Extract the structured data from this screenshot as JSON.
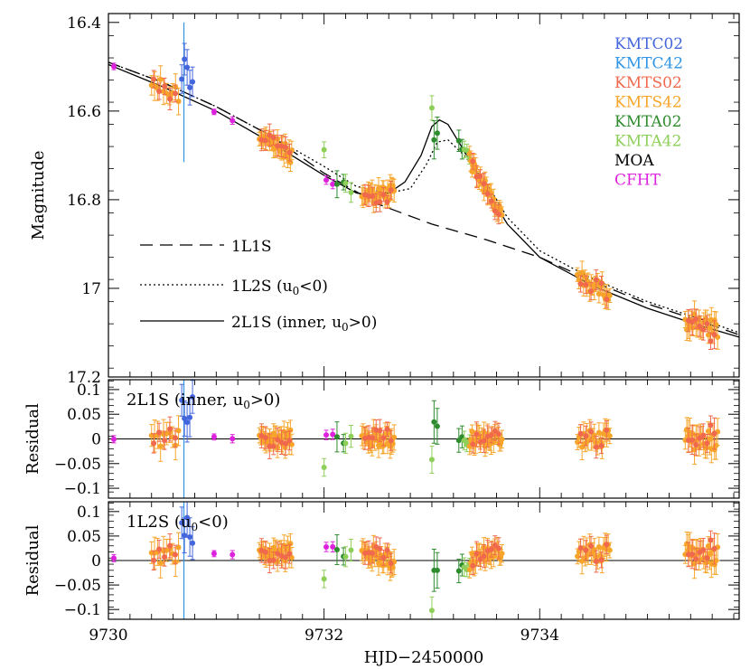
{
  "chart_data": {
    "type": "scatter",
    "xlabel": "HJD−2450000",
    "x_ticks": [
      "9730",
      "9732",
      "9734"
    ],
    "x_range": [
      9730.0,
      9735.85
    ],
    "panels": [
      {
        "ylabel": "Magnitude",
        "y_range": [
          16.38,
          17.2
        ],
        "y_inverted": true,
        "y_ticks": [
          "16.4",
          "16.6",
          "16.8",
          "17",
          "17.2"
        ],
        "y_tick_values": [
          16.4,
          16.6,
          16.8,
          17.0,
          17.2
        ]
      },
      {
        "ylabel": "Residual",
        "y_range": [
          -0.12,
          0.12
        ],
        "y_ticks": [
          "0.1",
          "0.05",
          "0",
          "−0.05",
          "−0.1"
        ],
        "y_tick_values": [
          0.1,
          0.05,
          0,
          -0.05,
          -0.1
        ],
        "label_prefix": "2L1S (inner, u",
        "label_sub": "0",
        "label_suffix": ">0)"
      },
      {
        "ylabel": "Residual",
        "y_range": [
          -0.12,
          0.12
        ],
        "y_ticks": [
          "0.1",
          "0.05",
          "0",
          "−0.05",
          "−0.1"
        ],
        "y_tick_values": [
          0.1,
          0.05,
          0,
          -0.05,
          -0.1
        ],
        "label_prefix": "1L2S (u",
        "label_sub": "0",
        "label_suffix": "<0)"
      }
    ],
    "legend_placement": "top-right",
    "series": [
      {
        "name": "KMTC02",
        "color": "#4466dd"
      },
      {
        "name": "KMTC42",
        "color": "#2f95e6"
      },
      {
        "name": "KMTS02",
        "color": "#f0694d"
      },
      {
        "name": "KMTS42",
        "color": "#f7a52a"
      },
      {
        "name": "KMTA02",
        "color": "#2e8b2e"
      },
      {
        "name": "KMTA42",
        "color": "#8ecf5a"
      },
      {
        "name": "MOA",
        "color": "#000000"
      },
      {
        "name": "CFHT",
        "color": "#dd22dd"
      }
    ],
    "models": [
      {
        "label_prefix": "1L1S",
        "label_sub": "",
        "label_suffix": "",
        "style": "dashed",
        "points": [
          [
            9730,
            16.49
          ],
          [
            9730.5,
            16.535
          ],
          [
            9731,
            16.59
          ],
          [
            9731.5,
            16.655
          ],
          [
            9732,
            16.74
          ],
          [
            9732.5,
            16.81
          ],
          [
            9733,
            16.855
          ],
          [
            9733.5,
            16.89
          ],
          [
            9734,
            16.93
          ],
          [
            9734.5,
            16.985
          ],
          [
            9735,
            17.035
          ],
          [
            9735.5,
            17.075
          ],
          [
            9735.85,
            17.105
          ]
        ]
      },
      {
        "label_prefix": "1L2S (u",
        "label_sub": "0",
        "label_suffix": "<0)",
        "style": "dotted",
        "points": [
          [
            9730,
            16.49
          ],
          [
            9730.5,
            16.535
          ],
          [
            9731,
            16.59
          ],
          [
            9731.5,
            16.655
          ],
          [
            9732,
            16.725
          ],
          [
            9732.3,
            16.77
          ],
          [
            9732.6,
            16.785
          ],
          [
            9732.8,
            16.775
          ],
          [
            9732.95,
            16.72
          ],
          [
            9733.05,
            16.67
          ],
          [
            9733.15,
            16.665
          ],
          [
            9733.3,
            16.7
          ],
          [
            9733.5,
            16.76
          ],
          [
            9733.7,
            16.84
          ],
          [
            9734,
            16.915
          ],
          [
            9734.5,
            16.98
          ],
          [
            9735,
            17.03
          ],
          [
            9735.5,
            17.07
          ],
          [
            9735.85,
            17.1
          ]
        ]
      },
      {
        "label_prefix": "2L1S (inner, u",
        "label_sub": "0",
        "label_suffix": ">0)",
        "style": "solid",
        "points": [
          [
            9730,
            16.495
          ],
          [
            9730.5,
            16.545
          ],
          [
            9731,
            16.6
          ],
          [
            9731.5,
            16.67
          ],
          [
            9732,
            16.745
          ],
          [
            9732.3,
            16.785
          ],
          [
            9732.45,
            16.79
          ],
          [
            9732.6,
            16.785
          ],
          [
            9732.75,
            16.76
          ],
          [
            9732.9,
            16.7
          ],
          [
            9733.0,
            16.635
          ],
          [
            9733.07,
            16.62
          ],
          [
            9733.15,
            16.63
          ],
          [
            9733.3,
            16.69
          ],
          [
            9733.5,
            16.775
          ],
          [
            9733.7,
            16.855
          ],
          [
            9734,
            16.93
          ],
          [
            9734.5,
            16.995
          ],
          [
            9735,
            17.045
          ],
          [
            9735.5,
            17.085
          ],
          [
            9735.85,
            17.11
          ]
        ]
      }
    ],
    "data_groups": [
      {
        "series": "KMTS42",
        "x_start": 9730.4,
        "x_end": 9730.65,
        "count": 10,
        "mag_offset": 0.0,
        "err": 0.025
      },
      {
        "series": "KMTS02",
        "x_start": 9730.42,
        "x_end": 9730.62,
        "count": 5,
        "mag_offset": 0.005,
        "err": 0.02
      },
      {
        "series": "KMTC02",
        "x_start": 9730.68,
        "x_end": 9730.78,
        "count": 5,
        "mag_offset": -0.06,
        "err": 0.04
      },
      {
        "series": "CFHT",
        "x_start": 9730.05,
        "x_end": 9730.05,
        "count": 1,
        "mag_offset": 0.0,
        "err": 0.006
      },
      {
        "series": "CFHT",
        "x_start": 9730.98,
        "x_end": 9731.15,
        "count": 2,
        "mag_offset": 0.0,
        "err": 0.007
      },
      {
        "series": "KMTS42",
        "x_start": 9731.4,
        "x_end": 9731.7,
        "count": 26,
        "mag_offset": 0.0,
        "err": 0.02
      },
      {
        "series": "KMTS02",
        "x_start": 9731.42,
        "x_end": 9731.68,
        "count": 8,
        "mag_offset": 0.0,
        "err": 0.02
      },
      {
        "series": "KMTA42",
        "x_start": 9732.0,
        "x_end": 9732.0,
        "count": 1,
        "mag_offset": -0.04,
        "err": 0.02
      },
      {
        "series": "CFHT",
        "x_start": 9732.02,
        "x_end": 9732.08,
        "count": 2,
        "mag_offset": 0.005,
        "err": 0.008
      },
      {
        "series": "KMTA02",
        "x_start": 9732.12,
        "x_end": 9732.18,
        "count": 2,
        "mag_offset": 0.0,
        "err": 0.025
      },
      {
        "series": "KMTA42",
        "x_start": 9732.2,
        "x_end": 9732.25,
        "count": 2,
        "mag_offset": 0.0,
        "err": 0.02
      },
      {
        "series": "KMTS42",
        "x_start": 9732.35,
        "x_end": 9732.65,
        "count": 26,
        "mag_offset": 0.0,
        "err": 0.02
      },
      {
        "series": "KMTS02",
        "x_start": 9732.38,
        "x_end": 9732.62,
        "count": 8,
        "mag_offset": 0.01,
        "err": 0.02
      },
      {
        "series": "KMTA42",
        "x_start": 9733.0,
        "x_end": 9733.0,
        "count": 1,
        "mag_offset": -0.04,
        "err": 0.03
      },
      {
        "series": "KMTA02",
        "x_start": 9733.02,
        "x_end": 9733.05,
        "count": 2,
        "mag_offset": 0.02,
        "err": 0.04
      },
      {
        "series": "KMTA02",
        "x_start": 9733.25,
        "x_end": 9733.28,
        "count": 2,
        "mag_offset": 0.0,
        "err": 0.025
      },
      {
        "series": "KMTA42",
        "x_start": 9733.3,
        "x_end": 9733.35,
        "count": 3,
        "mag_offset": -0.015,
        "err": 0.015
      },
      {
        "series": "KMTS42",
        "x_start": 9733.35,
        "x_end": 9733.65,
        "count": 28,
        "mag_offset": 0.0,
        "err": 0.018
      },
      {
        "series": "KMTS02",
        "x_start": 9733.38,
        "x_end": 9733.62,
        "count": 8,
        "mag_offset": 0.005,
        "err": 0.02
      },
      {
        "series": "KMTS42",
        "x_start": 9734.35,
        "x_end": 9734.65,
        "count": 22,
        "mag_offset": 0.0,
        "err": 0.02
      },
      {
        "series": "KMTS02",
        "x_start": 9734.38,
        "x_end": 9734.62,
        "count": 6,
        "mag_offset": 0.0,
        "err": 0.02
      },
      {
        "series": "KMTS42",
        "x_start": 9735.35,
        "x_end": 9735.65,
        "count": 22,
        "mag_offset": 0.0,
        "err": 0.025
      },
      {
        "series": "KMTS02",
        "x_start": 9735.38,
        "x_end": 9735.62,
        "count": 8,
        "mag_offset": 0.01,
        "err": 0.025
      }
    ],
    "kmtc42_vline_x": 9730.7
  }
}
